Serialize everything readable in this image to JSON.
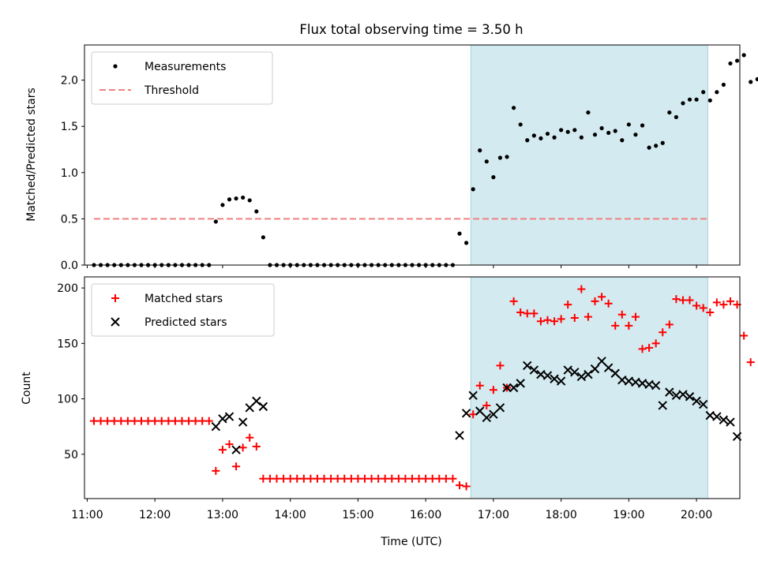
{
  "figure": {
    "title": "Flux total observing time = 3.50 h",
    "xlabel": "Time (UTC)"
  },
  "colors": {
    "shade": "#d3eaf0",
    "measurement": "#000000",
    "threshold": "#f08080",
    "matched": "#ff0000",
    "predicted": "#000000"
  },
  "chart_data": [
    {
      "type": "scatter",
      "ylabel": "Matched/Predicted stars",
      "xlim": [
        10.96,
        20.64
      ],
      "ylim": [
        0,
        2.38
      ],
      "yticks": [
        0.0,
        0.5,
        1.0,
        1.5,
        2.0
      ],
      "ytick_labels": [
        "0.0",
        "0.5",
        "1.0",
        "1.5",
        "2.0"
      ],
      "grid": false,
      "legend_position": "top-left",
      "shaded_interval": [
        "16:40",
        "20:10"
      ],
      "threshold": {
        "name": "Threshold",
        "y": 0.5,
        "x_range": [
          "11:06",
          "20:10"
        ]
      },
      "series": [
        {
          "name": "Measurements",
          "marker": "dot",
          "points": [
            [
              "11:06",
              0.0
            ],
            [
              "11:12",
              0.0
            ],
            [
              "11:18",
              0.0
            ],
            [
              "11:24",
              0.0
            ],
            [
              "11:30",
              0.0
            ],
            [
              "11:36",
              0.0
            ],
            [
              "11:42",
              0.0
            ],
            [
              "11:48",
              0.0
            ],
            [
              "11:54",
              0.0
            ],
            [
              "12:00",
              0.0
            ],
            [
              "12:06",
              0.0
            ],
            [
              "12:12",
              0.0
            ],
            [
              "12:18",
              0.0
            ],
            [
              "12:24",
              0.0
            ],
            [
              "12:30",
              0.0
            ],
            [
              "12:36",
              0.0
            ],
            [
              "12:42",
              0.0
            ],
            [
              "12:48",
              0.0
            ],
            [
              "12:54",
              0.47
            ],
            [
              "13:00",
              0.65
            ],
            [
              "13:06",
              0.71
            ],
            [
              "13:12",
              0.72
            ],
            [
              "13:18",
              0.73
            ],
            [
              "13:24",
              0.7
            ],
            [
              "13:30",
              0.58
            ],
            [
              "13:36",
              0.3
            ],
            [
              "13:42",
              0.0
            ],
            [
              "13:48",
              0.0
            ],
            [
              "13:54",
              0.0
            ],
            [
              "14:00",
              0.0
            ],
            [
              "14:06",
              0.0
            ],
            [
              "14:12",
              0.0
            ],
            [
              "14:18",
              0.0
            ],
            [
              "14:24",
              0.0
            ],
            [
              "14:30",
              0.0
            ],
            [
              "14:36",
              0.0
            ],
            [
              "14:42",
              0.0
            ],
            [
              "14:48",
              0.0
            ],
            [
              "14:54",
              0.0
            ],
            [
              "15:00",
              0.0
            ],
            [
              "15:06",
              0.0
            ],
            [
              "15:12",
              0.0
            ],
            [
              "15:18",
              0.0
            ],
            [
              "15:24",
              0.0
            ],
            [
              "15:30",
              0.0
            ],
            [
              "15:36",
              0.0
            ],
            [
              "15:42",
              0.0
            ],
            [
              "15:48",
              0.0
            ],
            [
              "15:54",
              0.0
            ],
            [
              "16:00",
              0.0
            ],
            [
              "16:06",
              0.0
            ],
            [
              "16:12",
              0.0
            ],
            [
              "16:18",
              0.0
            ],
            [
              "16:24",
              0.0
            ],
            [
              "16:30",
              0.34
            ],
            [
              "16:36",
              0.24
            ],
            [
              "16:42",
              0.82
            ],
            [
              "16:48",
              1.24
            ],
            [
              "16:54",
              1.12
            ],
            [
              "17:00",
              0.95
            ],
            [
              "17:06",
              1.16
            ],
            [
              "17:12",
              1.17
            ],
            [
              "17:18",
              1.7
            ],
            [
              "17:24",
              1.52
            ],
            [
              "17:30",
              1.35
            ],
            [
              "17:36",
              1.4
            ],
            [
              "17:42",
              1.37
            ],
            [
              "17:48",
              1.42
            ],
            [
              "17:54",
              1.38
            ],
            [
              "18:00",
              1.46
            ],
            [
              "18:06",
              1.44
            ],
            [
              "18:12",
              1.46
            ],
            [
              "18:18",
              1.38
            ],
            [
              "18:24",
              1.65
            ],
            [
              "18:30",
              1.41
            ],
            [
              "18:36",
              1.48
            ],
            [
              "18:42",
              1.43
            ],
            [
              "18:48",
              1.45
            ],
            [
              "18:54",
              1.35
            ],
            [
              "19:00",
              1.52
            ],
            [
              "19:06",
              1.41
            ],
            [
              "19:12",
              1.51
            ],
            [
              "19:18",
              1.27
            ],
            [
              "19:24",
              1.29
            ],
            [
              "19:30",
              1.32
            ],
            [
              "19:36",
              1.65
            ],
            [
              "19:42",
              1.6
            ],
            [
              "19:48",
              1.75
            ],
            [
              "19:54",
              1.79
            ],
            [
              "20:00",
              1.79
            ],
            [
              "20:06",
              1.87
            ],
            [
              "20:12",
              1.78
            ],
            [
              "20:18",
              1.87
            ],
            [
              "20:24",
              1.95
            ],
            [
              "20:30",
              2.18
            ],
            [
              "20:36",
              2.21
            ],
            [
              "20:42",
              2.27
            ],
            [
              "20:48",
              1.98
            ],
            [
              "20:54",
              2.01
            ]
          ]
        }
      ]
    },
    {
      "type": "scatter",
      "ylabel": "Count",
      "xlim": [
        10.96,
        20.64
      ],
      "ylim": [
        10,
        210
      ],
      "yticks": [
        50,
        100,
        150,
        200
      ],
      "ytick_labels": [
        "50",
        "100",
        "150",
        "200"
      ],
      "xtick_labels": [
        "11:00",
        "12:00",
        "13:00",
        "14:00",
        "15:00",
        "16:00",
        "17:00",
        "18:00",
        "19:00",
        "20:00"
      ],
      "grid": false,
      "legend_position": "top-left",
      "shaded_interval": [
        "16:40",
        "20:10"
      ],
      "series": [
        {
          "name": "Matched stars",
          "marker": "plus",
          "points": [
            [
              "11:06",
              80
            ],
            [
              "11:12",
              80
            ],
            [
              "11:18",
              80
            ],
            [
              "11:24",
              80
            ],
            [
              "11:30",
              80
            ],
            [
              "11:36",
              80
            ],
            [
              "11:42",
              80
            ],
            [
              "11:48",
              80
            ],
            [
              "11:54",
              80
            ],
            [
              "12:00",
              80
            ],
            [
              "12:06",
              80
            ],
            [
              "12:12",
              80
            ],
            [
              "12:18",
              80
            ],
            [
              "12:24",
              80
            ],
            [
              "12:30",
              80
            ],
            [
              "12:36",
              80
            ],
            [
              "12:42",
              80
            ],
            [
              "12:48",
              80
            ],
            [
              "12:54",
              35
            ],
            [
              "13:00",
              54
            ],
            [
              "13:06",
              59
            ],
            [
              "13:12",
              39
            ],
            [
              "13:18",
              56
            ],
            [
              "13:24",
              65
            ],
            [
              "13:30",
              57
            ],
            [
              "13:36",
              28
            ],
            [
              "13:42",
              28
            ],
            [
              "13:48",
              28
            ],
            [
              "13:54",
              28
            ],
            [
              "14:00",
              28
            ],
            [
              "14:06",
              28
            ],
            [
              "14:12",
              28
            ],
            [
              "14:18",
              28
            ],
            [
              "14:24",
              28
            ],
            [
              "14:30",
              28
            ],
            [
              "14:36",
              28
            ],
            [
              "14:42",
              28
            ],
            [
              "14:48",
              28
            ],
            [
              "14:54",
              28
            ],
            [
              "15:00",
              28
            ],
            [
              "15:06",
              28
            ],
            [
              "15:12",
              28
            ],
            [
              "15:18",
              28
            ],
            [
              "15:24",
              28
            ],
            [
              "15:30",
              28
            ],
            [
              "15:36",
              28
            ],
            [
              "15:42",
              28
            ],
            [
              "15:48",
              28
            ],
            [
              "15:54",
              28
            ],
            [
              "16:00",
              28
            ],
            [
              "16:06",
              28
            ],
            [
              "16:12",
              28
            ],
            [
              "16:18",
              28
            ],
            [
              "16:24",
              28
            ],
            [
              "16:30",
              22
            ],
            [
              "16:36",
              21
            ],
            [
              "16:42",
              86
            ],
            [
              "16:48",
              112
            ],
            [
              "16:54",
              94
            ],
            [
              "17:00",
              108
            ],
            [
              "17:06",
              130
            ],
            [
              "17:12",
              110
            ],
            [
              "17:18",
              188
            ],
            [
              "17:24",
              178
            ],
            [
              "17:30",
              177
            ],
            [
              "17:36",
              177
            ],
            [
              "17:42",
              170
            ],
            [
              "17:48",
              171
            ],
            [
              "17:54",
              170
            ],
            [
              "18:00",
              172
            ],
            [
              "18:06",
              185
            ],
            [
              "18:12",
              173
            ],
            [
              "18:18",
              199
            ],
            [
              "18:24",
              174
            ],
            [
              "18:30",
              188
            ],
            [
              "18:36",
              192
            ],
            [
              "18:42",
              186
            ],
            [
              "18:48",
              166
            ],
            [
              "18:54",
              176
            ],
            [
              "19:00",
              166
            ],
            [
              "19:06",
              174
            ],
            [
              "19:12",
              145
            ],
            [
              "19:18",
              146
            ],
            [
              "19:24",
              150
            ],
            [
              "19:30",
              160
            ],
            [
              "19:36",
              167
            ],
            [
              "19:42",
              190
            ],
            [
              "19:48",
              189
            ],
            [
              "19:54",
              189
            ],
            [
              "20:00",
              184
            ],
            [
              "20:06",
              182
            ],
            [
              "20:12",
              178
            ],
            [
              "20:18",
              187
            ],
            [
              "20:24",
              185
            ],
            [
              "20:30",
              188
            ],
            [
              "20:36",
              185
            ],
            [
              "20:42",
              157
            ],
            [
              "20:48",
              133
            ]
          ]
        },
        {
          "name": "Predicted stars",
          "marker": "x",
          "points": [
            [
              "12:54",
              75
            ],
            [
              "13:00",
              82
            ],
            [
              "13:06",
              84
            ],
            [
              "13:12",
              54
            ],
            [
              "13:18",
              79
            ],
            [
              "13:24",
              92
            ],
            [
              "13:30",
              98
            ],
            [
              "13:36",
              93
            ],
            [
              "16:30",
              67
            ],
            [
              "16:36",
              87
            ],
            [
              "16:42",
              103
            ],
            [
              "16:48",
              89
            ],
            [
              "16:54",
              83
            ],
            [
              "17:00",
              86
            ],
            [
              "17:06",
              92
            ],
            [
              "17:12",
              110
            ],
            [
              "17:18",
              110
            ],
            [
              "17:24",
              114
            ],
            [
              "17:30",
              130
            ],
            [
              "17:36",
              126
            ],
            [
              "17:42",
              122
            ],
            [
              "17:48",
              121
            ],
            [
              "17:54",
              118
            ],
            [
              "18:00",
              116
            ],
            [
              "18:06",
              126
            ],
            [
              "18:12",
              124
            ],
            [
              "18:18",
              120
            ],
            [
              "18:24",
              122
            ],
            [
              "18:30",
              127
            ],
            [
              "18:36",
              134
            ],
            [
              "18:42",
              128
            ],
            [
              "18:48",
              123
            ],
            [
              "18:54",
              117
            ],
            [
              "19:00",
              116
            ],
            [
              "19:06",
              115
            ],
            [
              "19:12",
              114
            ],
            [
              "19:18",
              113
            ],
            [
              "19:24",
              112
            ],
            [
              "19:30",
              94
            ],
            [
              "19:36",
              106
            ],
            [
              "19:42",
              103
            ],
            [
              "19:48",
              104
            ],
            [
              "19:54",
              102
            ],
            [
              "20:00",
              98
            ],
            [
              "20:06",
              95
            ],
            [
              "20:12",
              85
            ],
            [
              "20:18",
              84
            ],
            [
              "20:24",
              81
            ],
            [
              "20:30",
              79
            ],
            [
              "20:36",
              66
            ]
          ]
        }
      ]
    }
  ]
}
